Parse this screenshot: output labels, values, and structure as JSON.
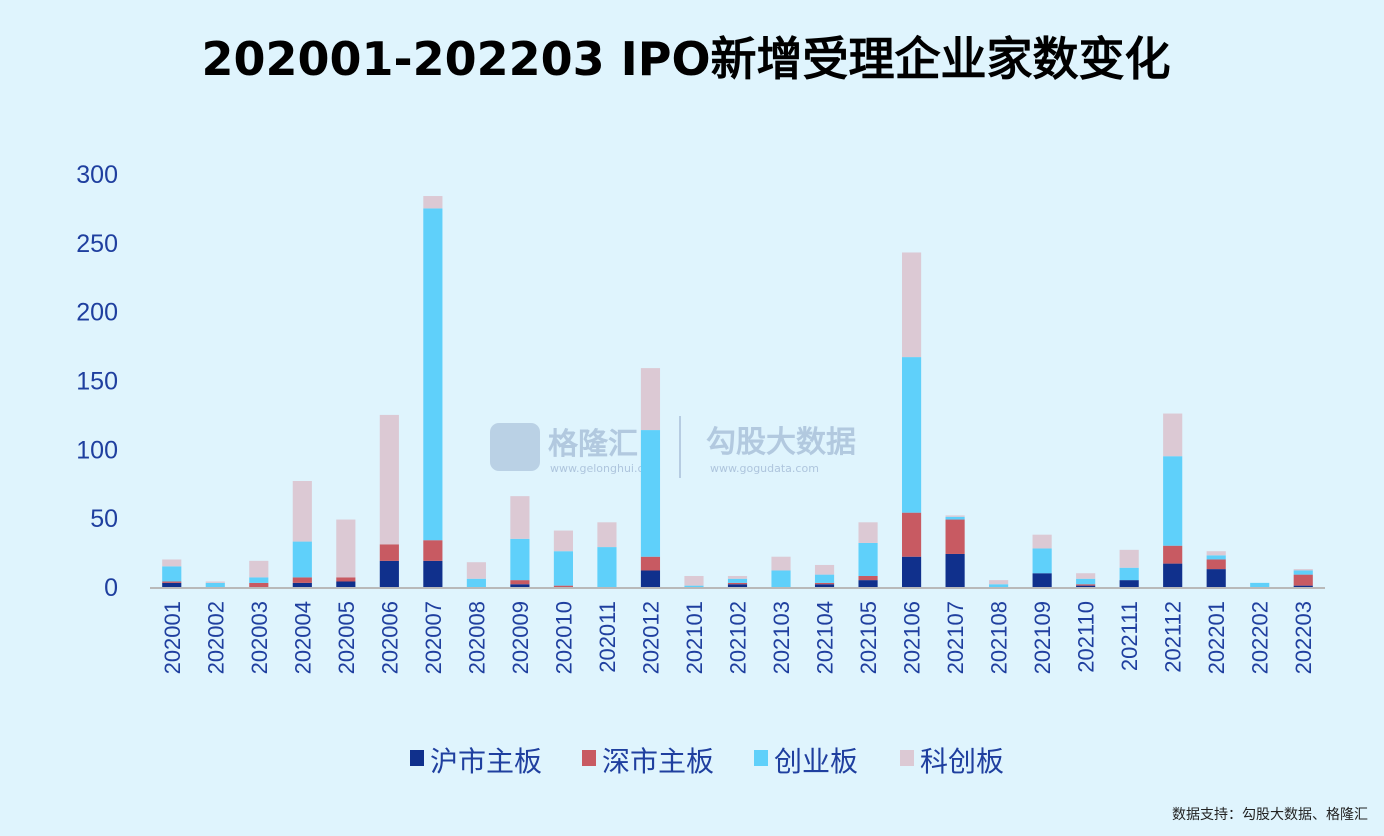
{
  "chart_data": {
    "type": "bar",
    "stacked": true,
    "title": "202001-202203 IPO新增受理企业家数变化",
    "xlabel": "",
    "ylabel": "",
    "ylim": [
      0,
      300
    ],
    "yticks": [
      0,
      50,
      100,
      150,
      200,
      250,
      300
    ],
    "categories": [
      "202001",
      "202002",
      "202003",
      "202004",
      "202005",
      "202006",
      "202007",
      "202008",
      "202009",
      "202010",
      "202011",
      "202012",
      "202101",
      "202102",
      "202103",
      "202104",
      "202105",
      "202106",
      "202107",
      "202108",
      "202109",
      "202110",
      "202111",
      "202112",
      "202201",
      "202202",
      "202203"
    ],
    "series": [
      {
        "name": "沪市主板",
        "color": "#10308c",
        "values": [
          3,
          0,
          0,
          3,
          4,
          19,
          19,
          0,
          2,
          0,
          0,
          12,
          0,
          2,
          0,
          2,
          5,
          22,
          24,
          0,
          10,
          1,
          5,
          17,
          13,
          0,
          1
        ]
      },
      {
        "name": "深市主板",
        "color": "#c85a62",
        "values": [
          1,
          0,
          3,
          4,
          3,
          12,
          15,
          0,
          3,
          1,
          0,
          10,
          0,
          1,
          0,
          1,
          3,
          32,
          25,
          0,
          0,
          1,
          0,
          13,
          7,
          0,
          8
        ]
      },
      {
        "name": "创业板",
        "color": "#5fd0fa",
        "values": [
          11,
          3,
          4,
          26,
          0,
          0,
          241,
          6,
          30,
          25,
          29,
          92,
          1,
          3,
          12,
          6,
          24,
          113,
          2,
          2,
          18,
          4,
          9,
          65,
          3,
          3,
          3
        ]
      },
      {
        "name": "科创板",
        "color": "#dcc9d4",
        "values": [
          5,
          1,
          12,
          44,
          42,
          94,
          9,
          12,
          31,
          15,
          18,
          45,
          7,
          2,
          10,
          7,
          15,
          76,
          1,
          3,
          10,
          4,
          13,
          31,
          3,
          0,
          1
        ]
      }
    ],
    "legend_position": "bottom"
  },
  "watermark": {
    "brand1": "格隆汇",
    "brand1_url": "www.gelonghui.com",
    "brand2": "勾股大数据",
    "brand2_url": "www.gogudata.com"
  },
  "source_note": "数据支持：勾股大数据、格隆汇"
}
